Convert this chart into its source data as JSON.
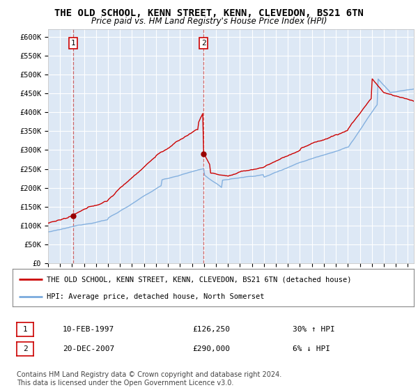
{
  "title": "THE OLD SCHOOL, KENN STREET, KENN, CLEVEDON, BS21 6TN",
  "subtitle": "Price paid vs. HM Land Registry's House Price Index (HPI)",
  "title_fontsize": 10,
  "subtitle_fontsize": 8.5,
  "plot_bg_color": "#dde8f5",
  "ylim": [
    0,
    620000
  ],
  "xlim_start": 1995.0,
  "xlim_end": 2025.5,
  "yticks": [
    0,
    50000,
    100000,
    150000,
    200000,
    250000,
    300000,
    350000,
    400000,
    450000,
    500000,
    550000,
    600000
  ],
  "ytick_labels": [
    "£0",
    "£50K",
    "£100K",
    "£150K",
    "£200K",
    "£250K",
    "£300K",
    "£350K",
    "£400K",
    "£450K",
    "£500K",
    "£550K",
    "£600K"
  ],
  "xtick_years": [
    1995,
    1996,
    1997,
    1998,
    1999,
    2000,
    2001,
    2002,
    2003,
    2004,
    2005,
    2006,
    2007,
    2008,
    2009,
    2010,
    2011,
    2012,
    2013,
    2014,
    2015,
    2016,
    2017,
    2018,
    2019,
    2020,
    2021,
    2022,
    2023,
    2024,
    2025
  ],
  "red_line_color": "#cc0000",
  "blue_line_color": "#7aaadd",
  "marker_color": "#990000",
  "sale1_x": 1997.11,
  "sale1_y": 126250,
  "sale1_label": "1",
  "sale2_x": 2007.97,
  "sale2_y": 290000,
  "sale2_label": "2",
  "legend_line1": "THE OLD SCHOOL, KENN STREET, KENN, CLEVEDON, BS21 6TN (detached house)",
  "legend_line2": "HPI: Average price, detached house, North Somerset",
  "table_row1_num": "1",
  "table_row1_date": "10-FEB-1997",
  "table_row1_price": "£126,250",
  "table_row1_hpi": "30% ↑ HPI",
  "table_row2_num": "2",
  "table_row2_date": "20-DEC-2007",
  "table_row2_price": "£290,000",
  "table_row2_hpi": "6% ↓ HPI",
  "footer": "Contains HM Land Registry data © Crown copyright and database right 2024.\nThis data is licensed under the Open Government Licence v3.0.",
  "footer_fontsize": 7
}
